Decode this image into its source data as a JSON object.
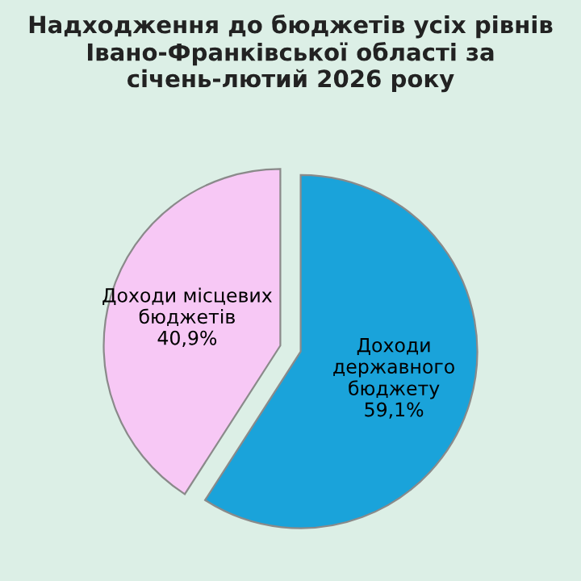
{
  "chart_data": {
    "type": "pie",
    "title": "Надходження до бюджетів усіх рівнів Івано-Франківської області за січень-лютий 2026 року",
    "categories": [
      "Доходи місцевих\nбюджетів",
      "Доходи\nдержавного\nбюджету"
    ],
    "values": [
      40.9,
      59.1
    ],
    "value_labels": [
      "40,9%",
      "59,1%"
    ],
    "colors": [
      "#f7c8f5",
      "#1aa3da"
    ],
    "legend": false
  }
}
